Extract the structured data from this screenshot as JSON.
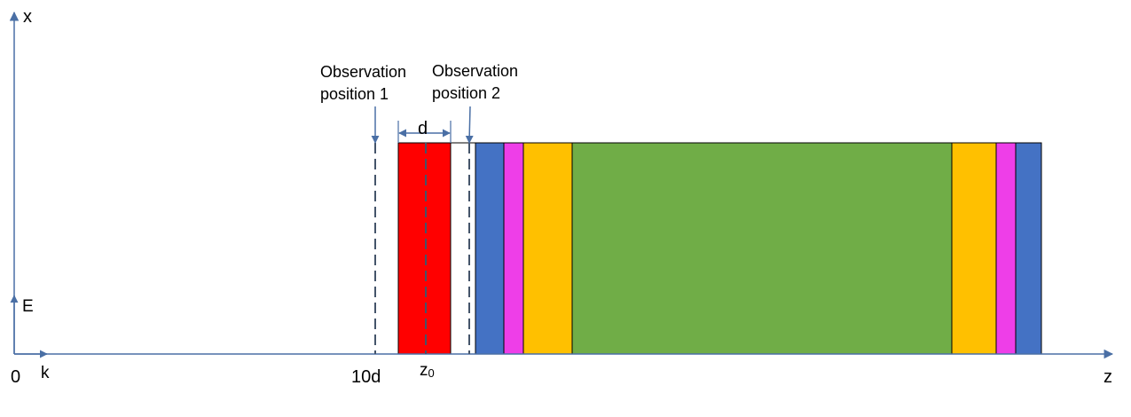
{
  "labels": {
    "x_axis": "x",
    "z_axis": "z",
    "origin": "0",
    "ten_d": "10d",
    "z0_base": "z",
    "z0_sub": "0",
    "field_E": "E",
    "wave_k": "k",
    "d": "d",
    "obs1_line1": "Observation",
    "obs1_line2": "position 1",
    "obs2_line1": "Observation",
    "obs2_line2": "position 2"
  },
  "layers": [
    {
      "name": "red-layer",
      "color": "#ff0000"
    },
    {
      "name": "blue-layer",
      "color": "#4472c4"
    },
    {
      "name": "magenta-layer",
      "color": "#ee3ee8"
    },
    {
      "name": "orange-layer",
      "color": "#ffc000"
    },
    {
      "name": "green-layer",
      "color": "#70ad47"
    },
    {
      "name": "orange-layer",
      "color": "#ffc000"
    },
    {
      "name": "magenta-layer",
      "color": "#ee3ee8"
    },
    {
      "name": "blue-layer",
      "color": "#4472c4"
    }
  ],
  "colors": {
    "axis": "#4a6fa5",
    "dashed": "#44546a"
  }
}
